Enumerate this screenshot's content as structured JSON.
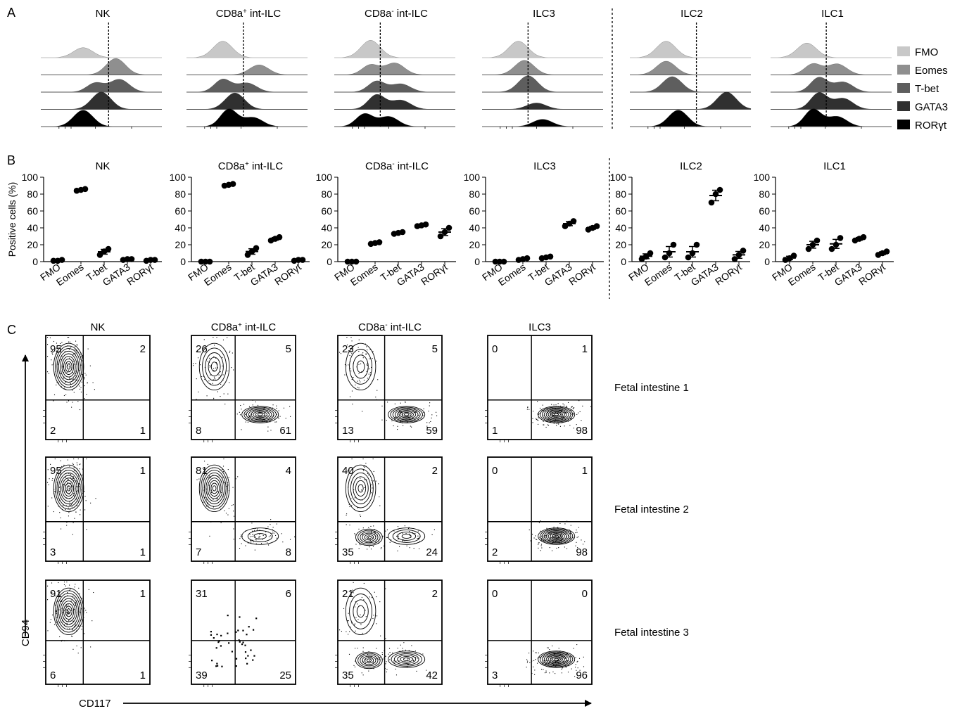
{
  "figure": {
    "panel_labels": [
      "A",
      "B",
      "C"
    ]
  },
  "chart_data": [
    {
      "type": "area",
      "panel": "A",
      "description_kind": "stacked histograms",
      "populations": [
        "NK",
        "CD8a+ int-ILC",
        "CD8a- int-ILC",
        "ILC3",
        "ILC2",
        "ILC1"
      ],
      "titles": [
        {
          "main": "NK",
          "sup": ""
        },
        {
          "main": "CD8a",
          "sup": "+",
          "rest": " int-ILC"
        },
        {
          "main": "CD8a",
          "sup": "-",
          "rest": " int-ILC"
        },
        {
          "main": "ILC3",
          "sup": ""
        },
        {
          "main": "ILC2",
          "sup": ""
        },
        {
          "main": "ILC1",
          "sup": ""
        }
      ],
      "legend": [
        {
          "name": "FMO",
          "color": "#c8c8c8"
        },
        {
          "name": "Eomes",
          "color": "#8f8f8f"
        },
        {
          "name": "T-bet",
          "color": "#5e5e5e"
        },
        {
          "name": "GATA3",
          "color": "#303030"
        },
        {
          "name": "RORγt",
          "color": "#000000"
        }
      ],
      "series_peaks": {
        "NK": [
          [
            0.35,
            0.55
          ],
          [
            0.62,
            0.9
          ],
          [
            0.45,
            0.5,
            0.7
          ],
          [
            0.5,
            0.95
          ],
          [
            0.35,
            0.9
          ]
        ],
        "CD8a+ int-ILC": [
          [
            0.3,
            0.9
          ],
          [
            0.6,
            0.55
          ],
          [
            0.3,
            0.7,
            0.5
          ],
          [
            0.4,
            0.9
          ],
          [
            0.35,
            0.95,
            0.5
          ]
        ],
        "CD8a- int-ILC": [
          [
            0.3,
            0.95
          ],
          [
            0.3,
            0.55,
            0.65
          ],
          [
            0.35,
            0.6,
            0.45
          ],
          [
            0.35,
            0.8,
            0.5
          ],
          [
            0.25,
            0.7,
            0.55
          ]
        ],
        "ILC3": [
          [
            0.3,
            0.9
          ],
          [
            0.35,
            0.8
          ],
          [
            0.38,
            0.9
          ],
          [
            0.45,
            0.35
          ],
          [
            0.5,
            0.4
          ]
        ],
        "ILC2": [
          [
            0.3,
            0.9
          ],
          [
            0.3,
            0.75
          ],
          [
            0.35,
            0.85
          ],
          [
            0.8,
            0.95
          ],
          [
            0.4,
            0.9
          ]
        ],
        "ILC1": [
          [
            0.3,
            0.8
          ],
          [
            0.35,
            0.6,
            0.6
          ],
          [
            0.4,
            0.8,
            0.55
          ],
          [
            0.4,
            0.9,
            0.6
          ],
          [
            0.35,
            0.95,
            0.55
          ]
        ]
      }
    },
    {
      "type": "scatter",
      "panel": "B",
      "ylabel": "Positive cells (%)",
      "ylim": [
        0,
        100
      ],
      "yticks": [
        0,
        20,
        40,
        60,
        80,
        100
      ],
      "categories": [
        "FMO",
        "Eomes",
        "T-bet",
        "GATA3",
        "RORγt"
      ],
      "groups": [
        {
          "title": {
            "main": "NK",
            "sup": ""
          },
          "values": [
            [
              1,
              1,
              2
            ],
            [
              84,
              85,
              86
            ],
            [
              8,
              12,
              15
            ],
            [
              2,
              3,
              3
            ],
            [
              1,
              2,
              2
            ]
          ]
        },
        {
          "title": {
            "main": "CD8a",
            "sup": "+",
            "rest": " int-ILC"
          },
          "values": [
            [
              0,
              0,
              0
            ],
            [
              90,
              91,
              92
            ],
            [
              8,
              12,
              16
            ],
            [
              25,
              27,
              29
            ],
            [
              1,
              2,
              2
            ]
          ]
        },
        {
          "title": {
            "main": "CD8a",
            "sup": "-",
            "rest": " int-ILC"
          },
          "values": [
            [
              0,
              0,
              0
            ],
            [
              21,
              22,
              23
            ],
            [
              33,
              34,
              35
            ],
            [
              42,
              43,
              44
            ],
            [
              30,
              35,
              40
            ]
          ]
        },
        {
          "title": {
            "main": "ILC3",
            "sup": ""
          },
          "values": [
            [
              0,
              0,
              0
            ],
            [
              2,
              3,
              4
            ],
            [
              4,
              5,
              6
            ],
            [
              42,
              45,
              48
            ],
            [
              38,
              40,
              42
            ]
          ]
        },
        {
          "title": {
            "main": "ILC2",
            "sup": ""
          },
          "values": [
            [
              3,
              6,
              10
            ],
            [
              5,
              10,
              20
            ],
            [
              5,
              10,
              20
            ],
            [
              70,
              80,
              85
            ],
            [
              3,
              8,
              13
            ]
          ]
        },
        {
          "title": {
            "main": "ILC1",
            "sup": ""
          },
          "values": [
            [
              2,
              4,
              7
            ],
            [
              15,
              20,
              25
            ],
            [
              15,
              20,
              28
            ],
            [
              25,
              27,
              29
            ],
            [
              8,
              10,
              12
            ]
          ]
        }
      ]
    },
    {
      "type": "scatter",
      "panel": "C",
      "description_kind": "flow cytometry contour plots",
      "xlabel": "CD117",
      "ylabel": "CD94",
      "columns": [
        {
          "main": "NK",
          "sup": ""
        },
        {
          "main": "CD8a",
          "sup": "+",
          "rest": " int-ILC"
        },
        {
          "main": "CD8a",
          "sup": "-",
          "rest": " int-ILC"
        },
        {
          "main": "ILC3",
          "sup": ""
        }
      ],
      "rows": [
        "Fetal intestine 1",
        "Fetal intestine 2",
        "Fetal intestine 3"
      ],
      "quadrant_order": [
        "upper-left",
        "upper-right",
        "lower-left",
        "lower-right"
      ],
      "quadrants": [
        [
          [
            95,
            2,
            2,
            1
          ],
          [
            26,
            5,
            8,
            61
          ],
          [
            23,
            5,
            13,
            59
          ],
          [
            0,
            1,
            1,
            98
          ]
        ],
        [
          [
            95,
            1,
            3,
            1
          ],
          [
            81,
            4,
            7,
            8
          ],
          [
            40,
            2,
            35,
            24
          ],
          [
            0,
            1,
            2,
            98
          ]
        ],
        [
          [
            91,
            1,
            6,
            1
          ],
          [
            31,
            6,
            39,
            25
          ],
          [
            21,
            2,
            35,
            42
          ],
          [
            0,
            0,
            3,
            96
          ]
        ]
      ]
    }
  ]
}
